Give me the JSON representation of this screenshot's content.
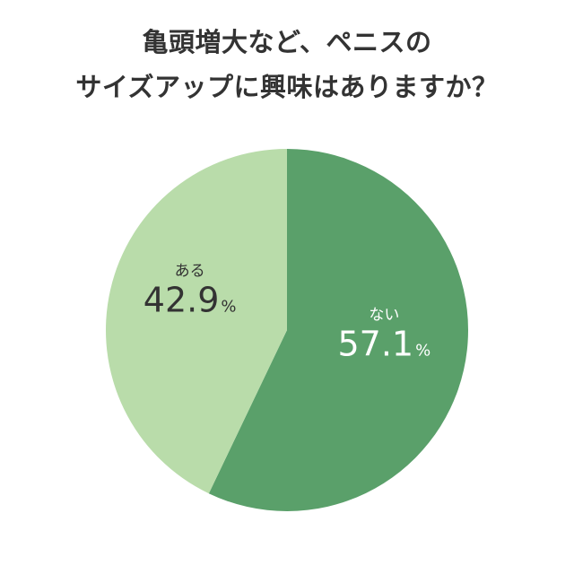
{
  "chart_data": {
    "type": "pie",
    "title_lines": [
      "亀頭増大など、ペニスの",
      "サイズアップに興味はありますか？"
    ],
    "start": "12 o'clock",
    "direction": "clockwise",
    "slices": [
      {
        "label": "ない",
        "value": 57.1,
        "display": "57.1",
        "unit": "%",
        "color": "#5aa06a",
        "text_color": "#ffffff"
      },
      {
        "label": "ある",
        "value": 42.9,
        "display": "42.9",
        "unit": "%",
        "color": "#b9dcaa",
        "text_color": "#333333"
      }
    ]
  }
}
